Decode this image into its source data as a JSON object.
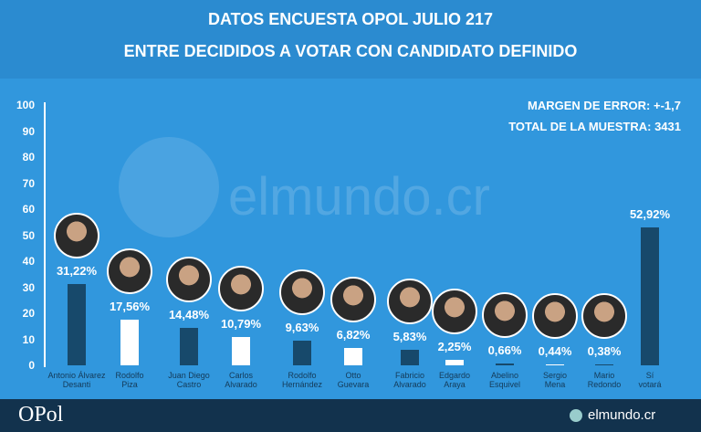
{
  "chart_data": {
    "type": "bar",
    "title": "DATOS ENCUESTA OPOL JULIO 217",
    "subtitle": "ENTRE DECIDIDOS A VOTAR CON CANDIDATO DEFINIDO",
    "annotations": [
      "MARGEN DE ERROR: +-1,7",
      "TOTAL DE LA MUESTRA: 3431"
    ],
    "watermark": "elmundo.cr",
    "footer": {
      "left": "OPol",
      "right": "elmundo.cr"
    },
    "categories": [
      "Antonio Álvarez\nDesanti",
      "Rodolfo\nPiza",
      "Juan Diego\nCastro",
      "Carlos\nAlvarado",
      "Rodolfo\nHernández",
      "Otto\nGuevara",
      "Fabricio\nAlvarado",
      "Edgardo\nAraya",
      "Abelino\nEsquivel",
      "Sergio\nMena",
      "Mario\nRedondo",
      "Sí\nvotará"
    ],
    "values": [
      31.22,
      17.56,
      14.48,
      10.79,
      9.63,
      6.82,
      5.83,
      2.25,
      0.66,
      0.44,
      0.38,
      52.92
    ],
    "value_labels": [
      "31,22%",
      "17,56%",
      "14,48%",
      "10,79%",
      "9,63%",
      "6,82%",
      "5,83%",
      "2,25%",
      "0,66%",
      "0,44%",
      "0,38%",
      "52,92%"
    ],
    "colors": [
      "#17496b",
      "#ffffff",
      "#17496b",
      "#ffffff",
      "#17496b",
      "#ffffff",
      "#17496b",
      "#ffffff",
      "#17496b",
      "#ffffff",
      "#17496b",
      "#17496b"
    ],
    "ylim": [
      0,
      100
    ],
    "yticks": [
      0,
      10,
      20,
      30,
      40,
      50,
      60,
      70,
      80,
      90,
      100
    ],
    "grid": false
  }
}
